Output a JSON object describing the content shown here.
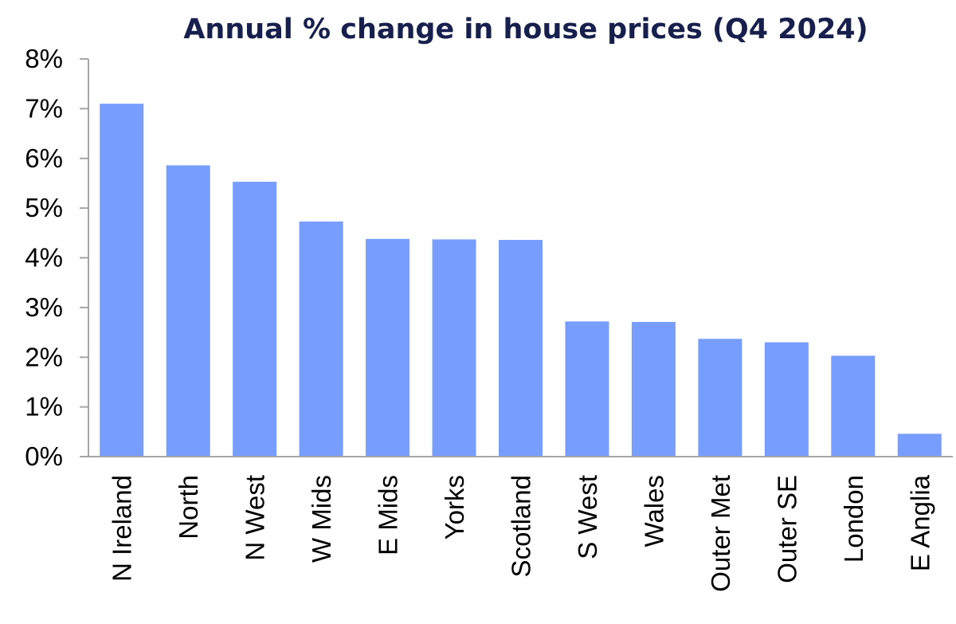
{
  "chart_data": {
    "type": "bar",
    "title": "Annual % change in house prices (Q4 2024)",
    "xlabel": "",
    "ylabel": "",
    "categories": [
      "N Ireland",
      "North",
      "N West",
      "W Mids",
      "E Mids",
      "Yorks",
      "Scotland",
      "S West",
      "Wales",
      "Outer Met",
      "Outer SE",
      "London",
      "E Anglia"
    ],
    "values": [
      7.1,
      5.86,
      5.53,
      4.73,
      4.38,
      4.37,
      4.36,
      2.72,
      2.71,
      2.37,
      2.3,
      2.03,
      0.46
    ],
    "ylim": [
      0,
      8
    ],
    "yticks": [
      0,
      1,
      2,
      3,
      4,
      5,
      6,
      7,
      8
    ],
    "ytick_labels": [
      "0%",
      "1%",
      "2%",
      "3%",
      "4%",
      "5%",
      "6%",
      "7%",
      "8%"
    ],
    "grid": false,
    "legend": "none",
    "colors": {
      "bar": "#779efe",
      "title": "#17204d",
      "text": "#000000",
      "axis": "#a6a6a6"
    }
  }
}
